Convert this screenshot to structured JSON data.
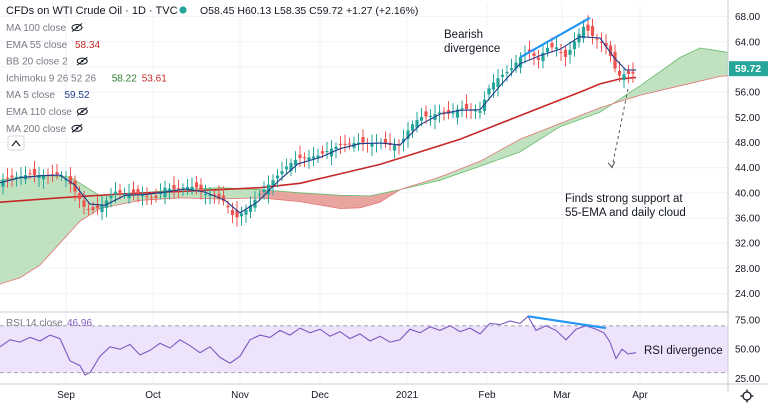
{
  "header": {
    "title": "CFDs on WTI Crude Oil · 1D · TVC",
    "ohlc": "O58.45 H60.13 L58.35 C59.72 +1.27 (+2.16%)"
  },
  "legend": [
    {
      "label": "MA 100 close",
      "value": "",
      "color": "#9aa0ab",
      "visible": false
    },
    {
      "label": "EMA 55 close",
      "value": "58.34",
      "color": "#c62828",
      "visible": true
    },
    {
      "label": "BB 20 close 2",
      "value": "",
      "color": "#9aa0ab",
      "visible": false
    },
    {
      "label": "Ichimoku 9 26 52 26",
      "value": "58.22",
      "value2": "53.61",
      "color": "#2e7d32",
      "color2": "#c62828",
      "visible": true
    },
    {
      "label": "MA 5 close",
      "value": "59.52",
      "color": "#1e3a8a",
      "visible": true
    },
    {
      "label": "EMA 110 close",
      "value": "",
      "color": "#9aa0ab",
      "visible": false
    },
    {
      "label": "MA 200 close",
      "value": "",
      "color": "#9aa0ab",
      "visible": false
    }
  ],
  "annotations": {
    "bearish": [
      "Bearish",
      "divergence"
    ],
    "support": [
      "Finds strong support at",
      "55-EMA and daily cloud"
    ],
    "rsi_div": "RSI divergence"
  },
  "rsi": {
    "label": "RSI 14 close",
    "value": "46.96",
    "color": "#7e57c2"
  },
  "price_badge": "59.72",
  "colors": {
    "up": "#26a69a",
    "down": "#ef5350",
    "ema55": "#c62828",
    "ma5": "#1e3a8a",
    "cloud_bull": "#a5d6a7",
    "cloud_bear": "#ef9a9a",
    "trend": "#2196f3"
  },
  "chart_data": [
    {
      "type": "candlestick",
      "title": "CFDs on WTI Crude Oil · 1D · TVC",
      "x_labels": [
        "Sep",
        "Oct",
        "Nov",
        "Dec",
        "2021",
        "Feb",
        "Mar",
        "Apr"
      ],
      "y_ticks": [
        24,
        28,
        32,
        36,
        40,
        44,
        48,
        52,
        56,
        60,
        64,
        68
      ],
      "ylim": [
        22,
        70
      ],
      "last_close": 59.72,
      "close": [
        [
          0,
          41.8
        ],
        [
          10,
          42.4
        ],
        [
          20,
          42.6
        ],
        [
          30,
          43.0
        ],
        [
          40,
          42.6
        ],
        [
          50,
          42.8
        ],
        [
          60,
          43.0
        ],
        [
          70,
          41.5
        ],
        [
          75,
          40.2
        ],
        [
          85,
          37.5
        ],
        [
          95,
          37.2
        ],
        [
          105,
          38.5
        ],
        [
          115,
          40.2
        ],
        [
          125,
          39.8
        ],
        [
          135,
          40.1
        ],
        [
          145,
          39.5
        ],
        [
          155,
          39.0
        ],
        [
          165,
          40.8
        ],
        [
          175,
          40.5
        ],
        [
          185,
          40.9
        ],
        [
          195,
          41.0
        ],
        [
          205,
          39.8
        ],
        [
          215,
          39.5
        ],
        [
          225,
          38.5
        ],
        [
          235,
          35.8
        ],
        [
          240,
          36.5
        ],
        [
          248,
          37.5
        ],
        [
          258,
          39.5
        ],
        [
          268,
          41.2
        ],
        [
          278,
          42.8
        ],
        [
          288,
          44.4
        ],
        [
          298,
          45.5
        ],
        [
          308,
          45.6
        ],
        [
          320,
          46.0
        ],
        [
          330,
          46.9
        ],
        [
          340,
          47.6
        ],
        [
          350,
          47.8
        ],
        [
          360,
          48.0
        ],
        [
          370,
          47.8
        ],
        [
          380,
          48.0
        ],
        [
          390,
          47.6
        ],
        [
          400,
          47.5
        ],
        [
          410,
          50.5
        ],
        [
          420,
          52.0
        ],
        [
          430,
          52.2
        ],
        [
          440,
          52.8
        ],
        [
          450,
          52.5
        ],
        [
          460,
          53.5
        ],
        [
          470,
          53.2
        ],
        [
          480,
          53.0
        ],
        [
          490,
          57.0
        ],
        [
          500,
          58.5
        ],
        [
          510,
          59.5
        ],
        [
          520,
          61.5
        ],
        [
          530,
          62.5
        ],
        [
          538,
          61.0
        ],
        [
          546,
          63.0
        ],
        [
          556,
          63.2
        ],
        [
          566,
          61.5
        ],
        [
          576,
          64.5
        ],
        [
          584,
          66.5
        ],
        [
          592,
          65.0
        ],
        [
          600,
          64.0
        ],
        [
          608,
          63.0
        ],
        [
          614,
          60.0
        ],
        [
          620,
          58.5
        ],
        [
          626,
          59.0
        ],
        [
          632,
          58.7
        ],
        [
          636,
          59.7
        ]
      ],
      "ema55": [
        [
          0,
          38.5
        ],
        [
          60,
          39.2
        ],
        [
          120,
          39.8
        ],
        [
          180,
          40.2
        ],
        [
          220,
          40.5
        ],
        [
          260,
          40.8
        ],
        [
          300,
          41.5
        ],
        [
          340,
          43.0
        ],
        [
          380,
          44.5
        ],
        [
          420,
          46.5
        ],
        [
          460,
          48.5
        ],
        [
          500,
          51.0
        ],
        [
          540,
          53.5
        ],
        [
          580,
          56.0
        ],
        [
          600,
          57.3
        ],
        [
          620,
          58.1
        ],
        [
          636,
          58.34
        ]
      ],
      "ma5": [
        [
          0,
          41.6
        ],
        [
          20,
          42.4
        ],
        [
          40,
          42.7
        ],
        [
          60,
          42.8
        ],
        [
          75,
          41.2
        ],
        [
          90,
          38.2
        ],
        [
          105,
          38.0
        ],
        [
          125,
          39.6
        ],
        [
          145,
          39.7
        ],
        [
          165,
          40.1
        ],
        [
          185,
          40.6
        ],
        [
          205,
          40.1
        ],
        [
          225,
          38.8
        ],
        [
          240,
          36.8
        ],
        [
          258,
          38.6
        ],
        [
          278,
          41.8
        ],
        [
          298,
          44.6
        ],
        [
          320,
          45.6
        ],
        [
          340,
          47.0
        ],
        [
          360,
          47.8
        ],
        [
          380,
          47.9
        ],
        [
          400,
          47.6
        ],
        [
          420,
          50.8
        ],
        [
          440,
          52.5
        ],
        [
          460,
          53.1
        ],
        [
          480,
          53.2
        ],
        [
          500,
          57.0
        ],
        [
          520,
          60.5
        ],
        [
          540,
          61.8
        ],
        [
          560,
          62.8
        ],
        [
          580,
          64.8
        ],
        [
          600,
          64.6
        ],
        [
          614,
          61.5
        ],
        [
          626,
          59.5
        ],
        [
          636,
          59.52
        ]
      ],
      "cloud_top": [
        [
          0,
          42.0
        ],
        [
          40,
          42.8
        ],
        [
          70,
          42.5
        ],
        [
          100,
          39.5
        ],
        [
          140,
          40.0
        ],
        [
          180,
          40.5
        ],
        [
          220,
          40.8
        ],
        [
          260,
          40.5
        ],
        [
          300,
          40.0
        ],
        [
          340,
          39.6
        ],
        [
          370,
          39.5
        ],
        [
          400,
          40.5
        ],
        [
          440,
          42.0
        ],
        [
          480,
          44.2
        ],
        [
          520,
          46.5
        ],
        [
          560,
          50.5
        ],
        [
          600,
          52.8
        ],
        [
          640,
          57.0
        ],
        [
          680,
          61.5
        ],
        [
          700,
          63.0
        ],
        [
          720,
          62.5
        ],
        [
          728,
          62.3
        ]
      ],
      "cloud_bottom": [
        [
          0,
          25.5
        ],
        [
          20,
          26.5
        ],
        [
          40,
          28.5
        ],
        [
          60,
          32.0
        ],
        [
          80,
          35.5
        ],
        [
          100,
          37.5
        ],
        [
          140,
          38.8
        ],
        [
          180,
          39.2
        ],
        [
          220,
          39.0
        ],
        [
          260,
          39.2
        ],
        [
          300,
          38.6
        ],
        [
          340,
          37.5
        ],
        [
          360,
          37.6
        ],
        [
          380,
          38.5
        ],
        [
          400,
          40.5
        ],
        [
          440,
          42.5
        ],
        [
          480,
          45.0
        ],
        [
          520,
          48.5
        ],
        [
          560,
          51.0
        ],
        [
          600,
          53.5
        ],
        [
          640,
          55.5
        ],
        [
          680,
          57.0
        ],
        [
          720,
          58.5
        ],
        [
          728,
          58.6
        ]
      ],
      "bear_cloud_range": [
        [
          260,
          400
        ]
      ],
      "trendline": [
        [
          520,
          61.5
        ],
        [
          590,
          67.8
        ]
      ],
      "projection": [
        [
          628,
          56.5
        ],
        [
          612,
          44.0
        ]
      ]
    },
    {
      "type": "line",
      "title": "RSI 14 close",
      "y_ticks": [
        25.0,
        50.0,
        75.0
      ],
      "ylim": [
        22,
        80
      ],
      "band": [
        30,
        70
      ],
      "values": [
        [
          0,
          52
        ],
        [
          10,
          58
        ],
        [
          20,
          56
        ],
        [
          30,
          60
        ],
        [
          40,
          57
        ],
        [
          50,
          62
        ],
        [
          60,
          59
        ],
        [
          70,
          40
        ],
        [
          80,
          36
        ],
        [
          85,
          28
        ],
        [
          90,
          30
        ],
        [
          100,
          44
        ],
        [
          110,
          52
        ],
        [
          120,
          50
        ],
        [
          130,
          54
        ],
        [
          140,
          45
        ],
        [
          150,
          49
        ],
        [
          160,
          55
        ],
        [
          170,
          51
        ],
        [
          180,
          58
        ],
        [
          190,
          53
        ],
        [
          200,
          47
        ],
        [
          210,
          52
        ],
        [
          220,
          43
        ],
        [
          230,
          38
        ],
        [
          240,
          44
        ],
        [
          250,
          58
        ],
        [
          260,
          62
        ],
        [
          270,
          60
        ],
        [
          280,
          66
        ],
        [
          290,
          62
        ],
        [
          300,
          68
        ],
        [
          310,
          64
        ],
        [
          320,
          67
        ],
        [
          330,
          61
        ],
        [
          340,
          65
        ],
        [
          350,
          59
        ],
        [
          360,
          63
        ],
        [
          370,
          57
        ],
        [
          380,
          61
        ],
        [
          390,
          56
        ],
        [
          400,
          58
        ],
        [
          410,
          67
        ],
        [
          420,
          64
        ],
        [
          430,
          69
        ],
        [
          440,
          66
        ],
        [
          450,
          70
        ],
        [
          460,
          65
        ],
        [
          470,
          68
        ],
        [
          480,
          63
        ],
        [
          490,
          72
        ],
        [
          500,
          71
        ],
        [
          510,
          74
        ],
        [
          520,
          72
        ],
        [
          528,
          78
        ],
        [
          536,
          66
        ],
        [
          546,
          70
        ],
        [
          556,
          66
        ],
        [
          566,
          58
        ],
        [
          576,
          67
        ],
        [
          586,
          70
        ],
        [
          596,
          67
        ],
        [
          604,
          64
        ],
        [
          610,
          56
        ],
        [
          616,
          42
        ],
        [
          622,
          50
        ],
        [
          628,
          46
        ],
        [
          636,
          47
        ]
      ],
      "trendline": [
        [
          528,
          78
        ],
        [
          606,
          68
        ]
      ]
    }
  ]
}
